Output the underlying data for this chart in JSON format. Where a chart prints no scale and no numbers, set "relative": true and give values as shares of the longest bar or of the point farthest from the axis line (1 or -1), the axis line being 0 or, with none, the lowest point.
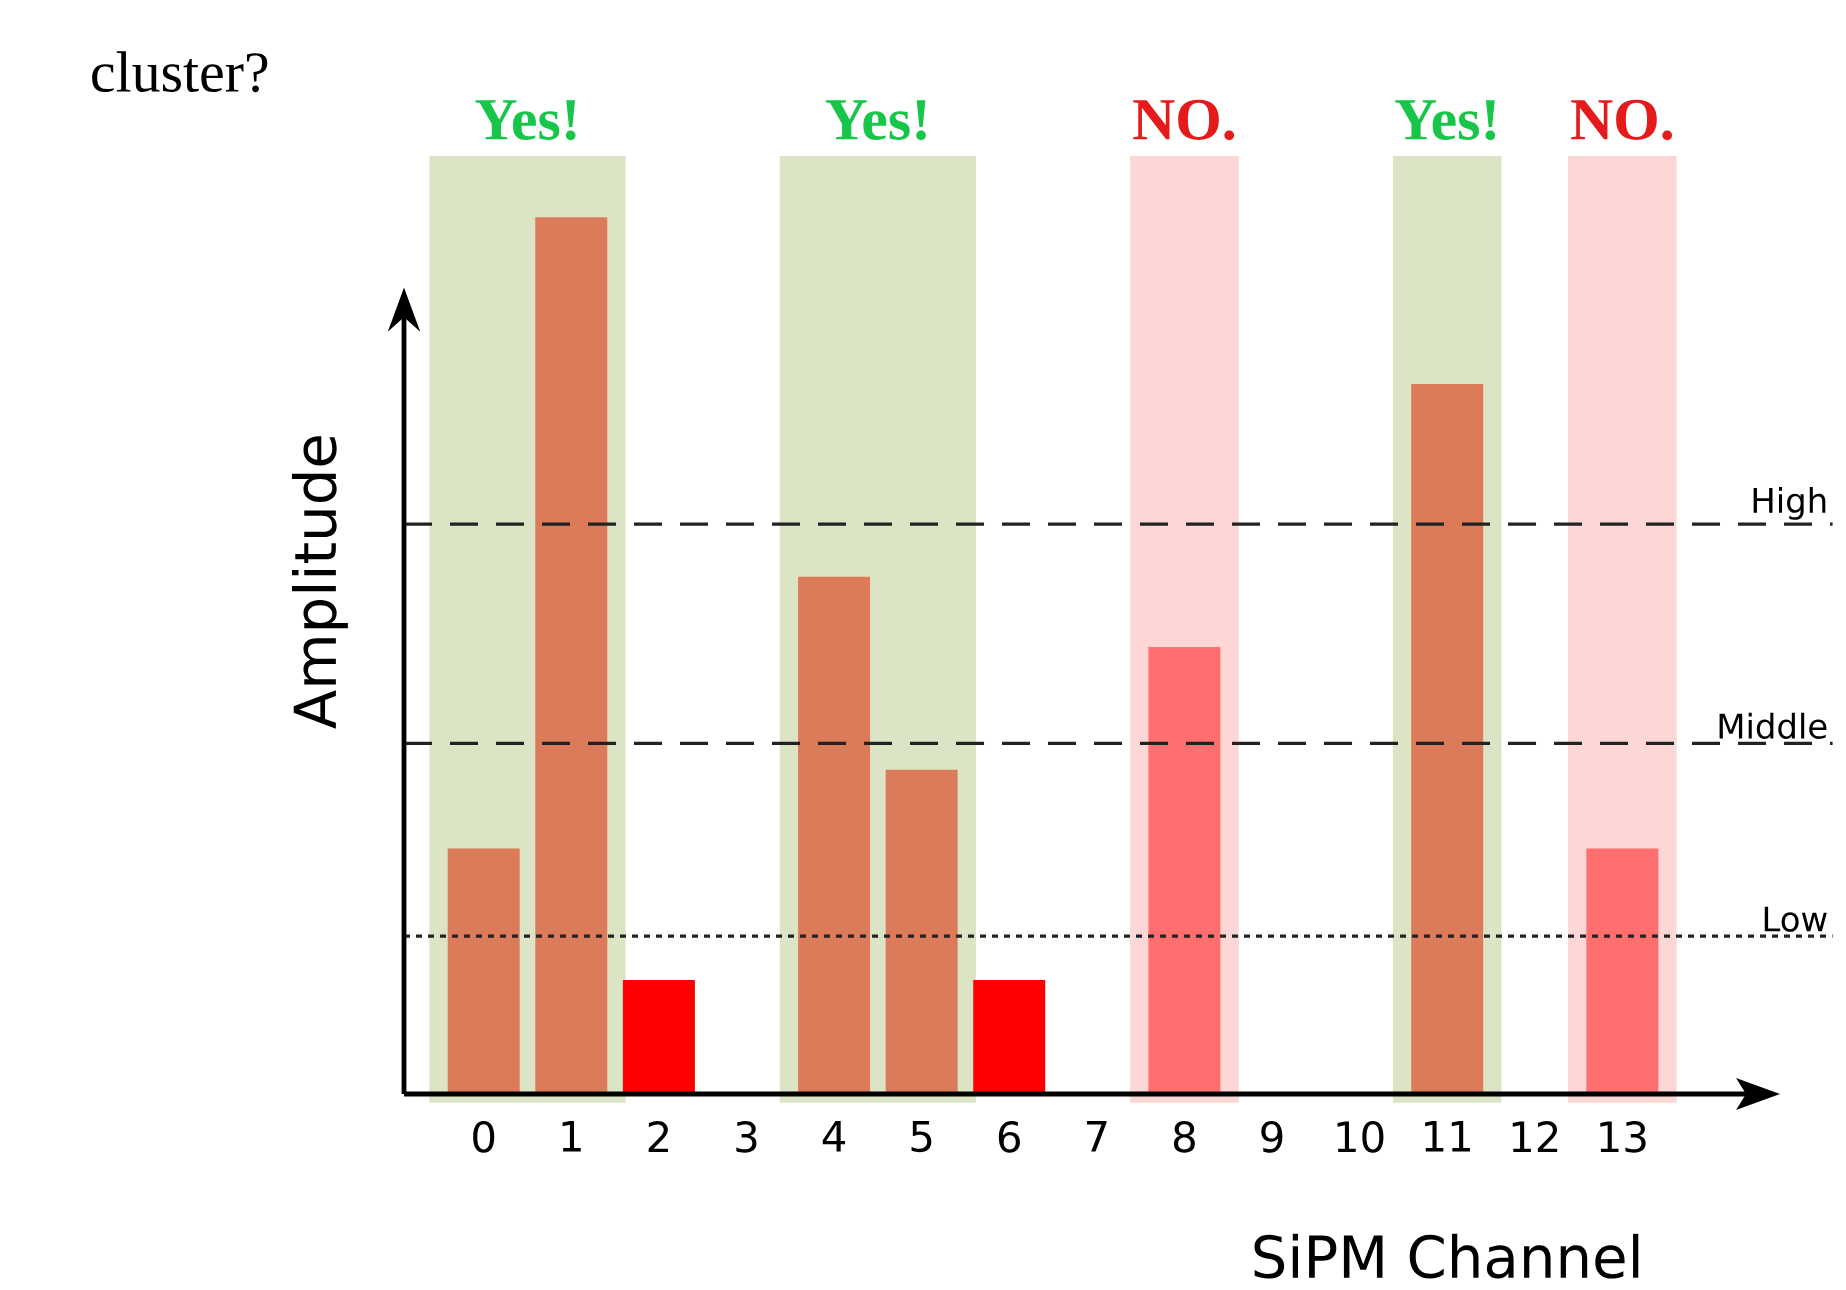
{
  "chart_data": {
    "type": "bar",
    "relative": true,
    "title": "cluster?",
    "xlabel": "SiPM Channel",
    "ylabel": "Amplitude",
    "categories": [
      "0",
      "1",
      "2",
      "3",
      "4",
      "5",
      "6",
      "7",
      "8",
      "9",
      "10",
      "11",
      "12",
      "13"
    ],
    "values": [
      0.28,
      1,
      0.13,
      0,
      0.59,
      0.37,
      0.13,
      0,
      0.51,
      0,
      0,
      0.81,
      0,
      0.28
    ],
    "colors": [
      "#dc7b5a",
      "#dc7b5a",
      "#ff0000",
      "#dc7b5a",
      "#dc7b5a",
      "#dc7b5a",
      "#ff0000",
      "#dc7b5a",
      "#ff6f6f",
      "#dc7b5a",
      "#dc7b5a",
      "#dc7b5a",
      "#dc7b5a",
      "#ff6f6f"
    ],
    "ref_lines": [
      {
        "axis": "y",
        "value": 0.65,
        "label": "High",
        "color": "#222222",
        "line_style": "dashed"
      },
      {
        "axis": "y",
        "value": 0.4,
        "label": "Middle",
        "color": "#222222",
        "line_style": "dashed"
      },
      {
        "axis": "y",
        "value": 0.18,
        "label": "Low",
        "color": "#222222",
        "line_style": "dotted"
      }
    ],
    "bands": [
      {
        "axis": "x",
        "from": "0",
        "to": "1",
        "label": "Yes!",
        "color": "#dbe5c6"
      },
      {
        "axis": "x",
        "from": "4",
        "to": "5",
        "label": "Yes!",
        "color": "#dbe5c6"
      },
      {
        "axis": "x",
        "from": "8",
        "to": "8",
        "label": "NO.",
        "color": "#fdd6d6"
      },
      {
        "axis": "x",
        "from": "11",
        "to": "11",
        "label": "Yes!",
        "color": "#dbe5c6"
      },
      {
        "axis": "x",
        "from": "13",
        "to": "13",
        "label": "NO.",
        "color": "#fdd6d6"
      }
    ]
  }
}
